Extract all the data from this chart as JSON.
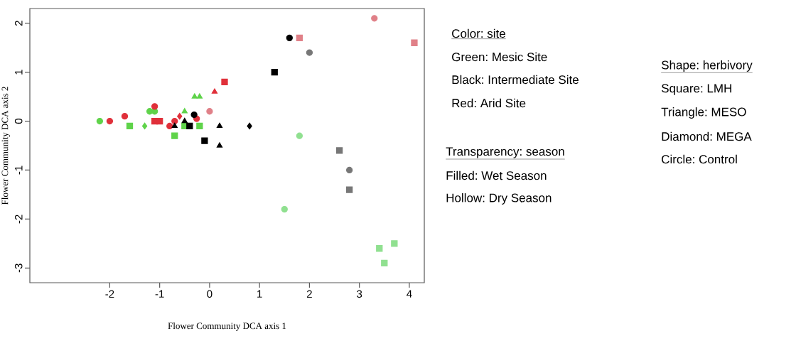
{
  "chart_data": {
    "type": "scatter",
    "xlabel": "Flower Community DCA axis 1",
    "ylabel": "Flower Community DCA axis 2",
    "xlim": [
      -3.6,
      4.3
    ],
    "ylim": [
      -3.3,
      2.3
    ],
    "xticks": [
      -2,
      -1,
      0,
      1,
      2,
      3,
      4
    ],
    "yticks": [
      -3,
      -2,
      -1,
      0,
      1,
      2
    ],
    "grid": false,
    "series": [
      {
        "color": "#5fd34a",
        "marker": "circle",
        "x": [
          -2.2,
          -1.2,
          -1.1
        ],
        "values": [
          0.0,
          0.2,
          0.2
        ]
      },
      {
        "color": "#5fd34a",
        "marker": "square",
        "x": [
          -1.6,
          -0.7,
          -0.5,
          -0.2
        ],
        "values": [
          -0.1,
          -0.3,
          -0.1,
          -0.1
        ]
      },
      {
        "color": "#5fd34a",
        "marker": "diamond",
        "x": [
          -1.3
        ],
        "values": [
          -0.1
        ]
      },
      {
        "color": "#5fd34a",
        "marker": "triangle",
        "x": [
          -0.5,
          -0.3,
          -0.2
        ],
        "values": [
          0.2,
          0.5,
          0.5
        ]
      },
      {
        "color": "#e0303a",
        "marker": "circle",
        "x": [
          -2.0,
          -1.7,
          -1.1,
          -0.8,
          -0.7,
          -0.26
        ],
        "values": [
          0.0,
          0.1,
          0.3,
          -0.1,
          0.0,
          0.05
        ]
      },
      {
        "color": "#e0303a",
        "marker": "square",
        "x": [
          -1.1,
          -1.0,
          0.3
        ],
        "values": [
          0.0,
          0.0,
          0.8
        ]
      },
      {
        "color": "#e0303a",
        "marker": "diamond",
        "x": [
          -0.6
        ],
        "values": [
          0.1
        ]
      },
      {
        "color": "#e0303a",
        "marker": "triangle",
        "x": [
          0.1
        ],
        "values": [
          0.6
        ]
      },
      {
        "color": "#000000",
        "marker": "circle",
        "x": [
          -0.31,
          1.6
        ],
        "values": [
          0.13,
          1.7
        ]
      },
      {
        "color": "#000000",
        "marker": "square",
        "x": [
          -0.4,
          -0.1,
          1.3
        ],
        "values": [
          -0.1,
          -0.4,
          1.0
        ]
      },
      {
        "color": "#000000",
        "marker": "triangle",
        "x": [
          -0.7,
          -0.5,
          0.2,
          0.2
        ],
        "values": [
          -0.1,
          0.0,
          -0.1,
          -0.5
        ]
      },
      {
        "color": "#000000",
        "marker": "diamond",
        "x": [
          0.8
        ],
        "values": [
          -0.1
        ]
      },
      {
        "color": "#e08088",
        "marker": "circle",
        "x": [
          0.0,
          3.3
        ],
        "values": [
          0.2,
          2.1
        ]
      },
      {
        "color": "#e08088",
        "marker": "square",
        "x": [
          1.8,
          4.1
        ],
        "values": [
          1.7,
          1.6
        ]
      },
      {
        "color": "#777777",
        "marker": "circle",
        "x": [
          2.0,
          2.8
        ],
        "values": [
          1.4,
          -1.0
        ]
      },
      {
        "color": "#777777",
        "marker": "square",
        "x": [
          2.6,
          2.8
        ],
        "values": [
          -0.6,
          -1.4
        ]
      },
      {
        "color": "#90e090",
        "marker": "circle",
        "x": [
          1.8,
          1.5
        ],
        "values": [
          -0.3,
          -1.8
        ]
      },
      {
        "color": "#90e090",
        "marker": "square",
        "x": [
          3.4,
          3.7,
          3.5
        ],
        "values": [
          -2.6,
          -2.5,
          -2.9
        ]
      }
    ],
    "annotations": [
      "Color: site",
      "Green: Mesic Site",
      "Black: Intermediate Site",
      "Red: Arid Site",
      "Transparency: season",
      "Filled: Wet Season",
      "Hollow: Dry Season",
      "Shape: herbivory",
      "Square: LMH",
      "Triangle: MESO",
      "Diamond: MEGA",
      "Circle: Control"
    ]
  }
}
